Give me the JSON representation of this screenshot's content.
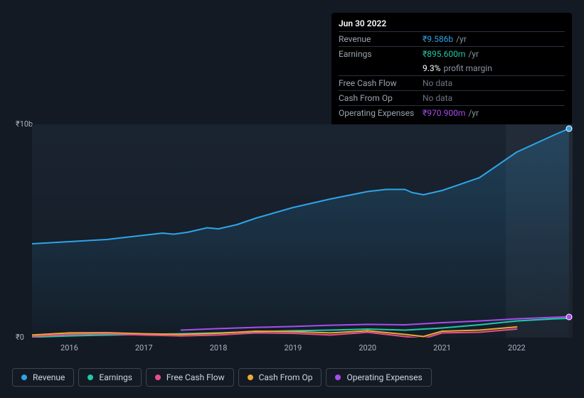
{
  "tooltip": {
    "date": "Jun 30 2022",
    "rows": [
      {
        "label": "Revenue",
        "value": "₹9.586b",
        "unit": "/yr",
        "color": "#2fa4e7"
      },
      {
        "label": "Earnings",
        "value": "₹895.600m",
        "unit": "/yr",
        "color": "#1fc9a9"
      },
      {
        "label": "",
        "value": "9.3%",
        "unit": "profit margin",
        "color": "#ffffff",
        "noborder": true
      },
      {
        "label": "Free Cash Flow",
        "nodata": "No data"
      },
      {
        "label": "Cash From Op",
        "nodata": "No data"
      },
      {
        "label": "Operating Expenses",
        "value": "₹970.900m",
        "unit": "/yr",
        "color": "#a94cf0"
      }
    ]
  },
  "chart": {
    "type": "line",
    "background_gradient_top": "#1a2430",
    "background_gradient_bottom": "#131a24",
    "x_start": 2015.5,
    "x_end": 2022.75,
    "y_min": 0,
    "y_max": 10,
    "y_ticks": [
      {
        "v": 10,
        "label": "₹10b"
      },
      {
        "v": 0,
        "label": "₹0"
      }
    ],
    "x_ticks": [
      "2016",
      "2017",
      "2018",
      "2019",
      "2020",
      "2021",
      "2022"
    ],
    "highlight_from": 2021.85,
    "highlight_to": 2022.75,
    "series": [
      {
        "name": "Revenue",
        "color": "#2fa4e7",
        "fill": true,
        "width": 2,
        "points": [
          [
            2015.5,
            4.4
          ],
          [
            2016,
            4.5
          ],
          [
            2016.5,
            4.6
          ],
          [
            2017,
            4.8
          ],
          [
            2017.25,
            4.9
          ],
          [
            2017.4,
            4.85
          ],
          [
            2017.6,
            4.95
          ],
          [
            2017.85,
            5.15
          ],
          [
            2018,
            5.1
          ],
          [
            2018.25,
            5.3
          ],
          [
            2018.5,
            5.6
          ],
          [
            2019,
            6.1
          ],
          [
            2019.5,
            6.5
          ],
          [
            2020,
            6.85
          ],
          [
            2020.25,
            6.95
          ],
          [
            2020.5,
            6.95
          ],
          [
            2020.6,
            6.8
          ],
          [
            2020.75,
            6.7
          ],
          [
            2021,
            6.9
          ],
          [
            2021.5,
            7.5
          ],
          [
            2022,
            8.7
          ],
          [
            2022.5,
            9.5
          ],
          [
            2022.7,
            9.8
          ]
        ]
      },
      {
        "name": "Operating Expenses",
        "color": "#a94cf0",
        "fill": false,
        "width": 2,
        "start": 2017.5,
        "points": [
          [
            2017.5,
            0.35
          ],
          [
            2018,
            0.42
          ],
          [
            2018.5,
            0.48
          ],
          [
            2019,
            0.52
          ],
          [
            2019.5,
            0.58
          ],
          [
            2020,
            0.62
          ],
          [
            2020.5,
            0.6
          ],
          [
            2021,
            0.7
          ],
          [
            2021.5,
            0.78
          ],
          [
            2022,
            0.88
          ],
          [
            2022.5,
            0.95
          ],
          [
            2022.7,
            0.98
          ]
        ]
      },
      {
        "name": "Earnings",
        "color": "#1fc9a9",
        "fill": false,
        "width": 2,
        "points": [
          [
            2015.5,
            0.02
          ],
          [
            2016,
            0.08
          ],
          [
            2016.25,
            0.1
          ],
          [
            2017,
            0.15
          ],
          [
            2017.5,
            0.18
          ],
          [
            2018,
            0.22
          ],
          [
            2018.5,
            0.28
          ],
          [
            2019,
            0.32
          ],
          [
            2019.5,
            0.35
          ],
          [
            2020,
            0.4
          ],
          [
            2020.5,
            0.35
          ],
          [
            2021,
            0.45
          ],
          [
            2021.5,
            0.6
          ],
          [
            2022,
            0.78
          ],
          [
            2022.5,
            0.88
          ],
          [
            2022.7,
            0.9
          ]
        ]
      },
      {
        "name": "Cash From Op",
        "color": "#f0a92f",
        "fill": false,
        "width": 2,
        "end": 2022.0,
        "points": [
          [
            2015.5,
            0.12
          ],
          [
            2016,
            0.22
          ],
          [
            2016.5,
            0.23
          ],
          [
            2017,
            0.18
          ],
          [
            2017.5,
            0.15
          ],
          [
            2018,
            0.2
          ],
          [
            2018.5,
            0.3
          ],
          [
            2019,
            0.28
          ],
          [
            2019.5,
            0.22
          ],
          [
            2020,
            0.32
          ],
          [
            2020.5,
            0.15
          ],
          [
            2020.75,
            0.05
          ],
          [
            2021,
            0.3
          ],
          [
            2021.5,
            0.35
          ],
          [
            2022,
            0.5
          ]
        ]
      },
      {
        "name": "Free Cash Flow",
        "color": "#e84f8a",
        "fill": false,
        "width": 2,
        "end": 2022.0,
        "points": [
          [
            2015.5,
            0.05
          ],
          [
            2016,
            0.15
          ],
          [
            2016.5,
            0.18
          ],
          [
            2017,
            0.12
          ],
          [
            2017.5,
            0.08
          ],
          [
            2018,
            0.12
          ],
          [
            2018.5,
            0.22
          ],
          [
            2019,
            0.2
          ],
          [
            2019.5,
            0.12
          ],
          [
            2020,
            0.25
          ],
          [
            2020.5,
            0.05
          ],
          [
            2020.75,
            -0.05
          ],
          [
            2021,
            0.22
          ],
          [
            2021.5,
            0.25
          ],
          [
            2022,
            0.4
          ]
        ]
      }
    ],
    "markers": [
      {
        "x": 2022.7,
        "y": 9.8,
        "color": "#2fa4e7"
      },
      {
        "x": 2022.7,
        "y": 0.98,
        "color": "#a94cf0"
      }
    ]
  },
  "legend": [
    {
      "label": "Revenue",
      "color": "#2fa4e7"
    },
    {
      "label": "Earnings",
      "color": "#1fc9a9"
    },
    {
      "label": "Free Cash Flow",
      "color": "#e84f8a"
    },
    {
      "label": "Cash From Op",
      "color": "#f0a92f"
    },
    {
      "label": "Operating Expenses",
      "color": "#a94cf0"
    }
  ]
}
